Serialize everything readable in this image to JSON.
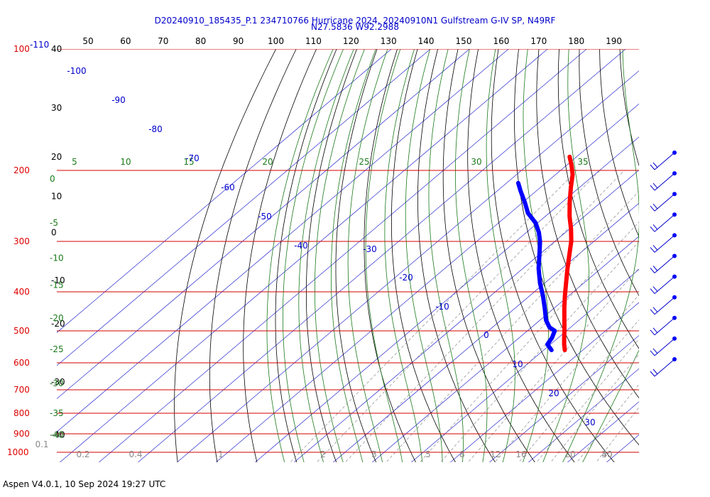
{
  "title_line1": "D20240910_185435_P.1 234710766 Hurricane 2024, 20240910N1 Gulfstream G-IV SP, N49RF",
  "title_line2": "N27.5836 W92.2988",
  "footer": "Aspen V4.0.1, 10 Sep 2024  19:27 UTC",
  "chart_data": {
    "type": "skew-t",
    "pressure_labels": [
      {
        "p": 100,
        "label": "100"
      },
      {
        "p": 200,
        "label": "200"
      },
      {
        "p": 300,
        "label": "300"
      },
      {
        "p": 400,
        "label": "400"
      },
      {
        "p": 500,
        "label": "500"
      },
      {
        "p": 600,
        "label": "600"
      },
      {
        "p": 700,
        "label": "700"
      },
      {
        "p": 800,
        "label": "800"
      },
      {
        "p": 900,
        "label": "900"
      },
      {
        "p": 1000,
        "label": "1000"
      }
    ],
    "pressure_extra_label": "-110",
    "top_axis_ticks": [
      "50",
      "60",
      "70",
      "80",
      "90",
      "100",
      "110",
      "120",
      "130",
      "140",
      "150",
      "160",
      "170",
      "180",
      "190"
    ],
    "left_black_labels": [
      {
        "p": 100,
        "label": "40"
      },
      {
        "p": 140,
        "label": "30"
      },
      {
        "p": 185,
        "label": "20"
      },
      {
        "p": 232,
        "label": "10"
      },
      {
        "p": 285,
        "label": "0"
      },
      {
        "p": 375,
        "label": "-10"
      },
      {
        "p": 480,
        "label": "-20"
      },
      {
        "p": 670,
        "label": "-30"
      },
      {
        "p": 905,
        "label": "-40"
      }
    ],
    "green_axis_labels": [
      {
        "p": 210,
        "label": "0"
      },
      {
        "p": 270,
        "label": "-5"
      },
      {
        "p": 330,
        "label": "-10"
      },
      {
        "p": 385,
        "label": "-15"
      },
      {
        "p": 465,
        "label": "-20"
      },
      {
        "p": 555,
        "label": "-25"
      },
      {
        "p": 675,
        "label": "-30"
      },
      {
        "p": 800,
        "label": "-35"
      },
      {
        "p": 905,
        "label": "-40"
      }
    ],
    "green_top_labels": [
      {
        "t": 5,
        "label": "5"
      },
      {
        "t": 10,
        "label": "10"
      },
      {
        "t": 15,
        "label": "15"
      },
      {
        "t": 20,
        "label": "20"
      },
      {
        "t": 25,
        "label": "25"
      },
      {
        "t": 30,
        "label": "30"
      },
      {
        "t": 35,
        "label": "35"
      }
    ],
    "isotherm_labels": [
      "-100",
      "-90",
      "-80",
      "-70",
      "-60",
      "-50",
      "-40",
      "-30",
      "-20",
      "-10",
      "0",
      "10",
      "20",
      "30"
    ],
    "mixing_ratio_labels": [
      "0.1",
      "0.2",
      "0.4",
      "1",
      "2",
      "3",
      "5",
      "8",
      "12",
      "16",
      "20",
      "30",
      "40"
    ],
    "temperature_C": [
      {
        "p": 558,
        "t": -4.6
      },
      {
        "p": 540,
        "t": -6.5
      },
      {
        "p": 520,
        "t": -8.5
      },
      {
        "p": 500,
        "t": -10.5
      },
      {
        "p": 470,
        "t": -13.8
      },
      {
        "p": 440,
        "t": -17.3
      },
      {
        "p": 410,
        "t": -20.9
      },
      {
        "p": 380,
        "t": -24.6
      },
      {
        "p": 350,
        "t": -28.6
      },
      {
        "p": 320,
        "t": -32.8
      },
      {
        "p": 300,
        "t": -35.8
      },
      {
        "p": 280,
        "t": -39.5
      },
      {
        "p": 260,
        "t": -43.8
      },
      {
        "p": 240,
        "t": -48.0
      },
      {
        "p": 220,
        "t": -52.3
      },
      {
        "p": 205,
        "t": -55.6
      },
      {
        "p": 195,
        "t": -58.5
      },
      {
        "p": 185,
        "t": -61.8
      }
    ],
    "dewpoint_C": [
      {
        "p": 558,
        "t": -8.0
      },
      {
        "p": 540,
        "t": -10.8
      },
      {
        "p": 520,
        "t": -11.6
      },
      {
        "p": 500,
        "t": -13.0
      },
      {
        "p": 490,
        "t": -15.4
      },
      {
        "p": 470,
        "t": -18.5
      },
      {
        "p": 440,
        "t": -22.3
      },
      {
        "p": 410,
        "t": -26.5
      },
      {
        "p": 380,
        "t": -31.3
      },
      {
        "p": 350,
        "t": -36.0
      },
      {
        "p": 320,
        "t": -40.5
      },
      {
        "p": 300,
        "t": -43.8
      },
      {
        "p": 285,
        "t": -46.8
      },
      {
        "p": 270,
        "t": -50.5
      },
      {
        "p": 255,
        "t": -55.5
      },
      {
        "p": 240,
        "t": -59.5
      },
      {
        "p": 225,
        "t": -64.0
      },
      {
        "p": 215,
        "t": -67.0
      }
    ],
    "wind_levels_hPa": [
      200,
      230,
      260,
      290,
      320,
      355,
      390,
      430,
      480,
      530,
      560
    ]
  }
}
